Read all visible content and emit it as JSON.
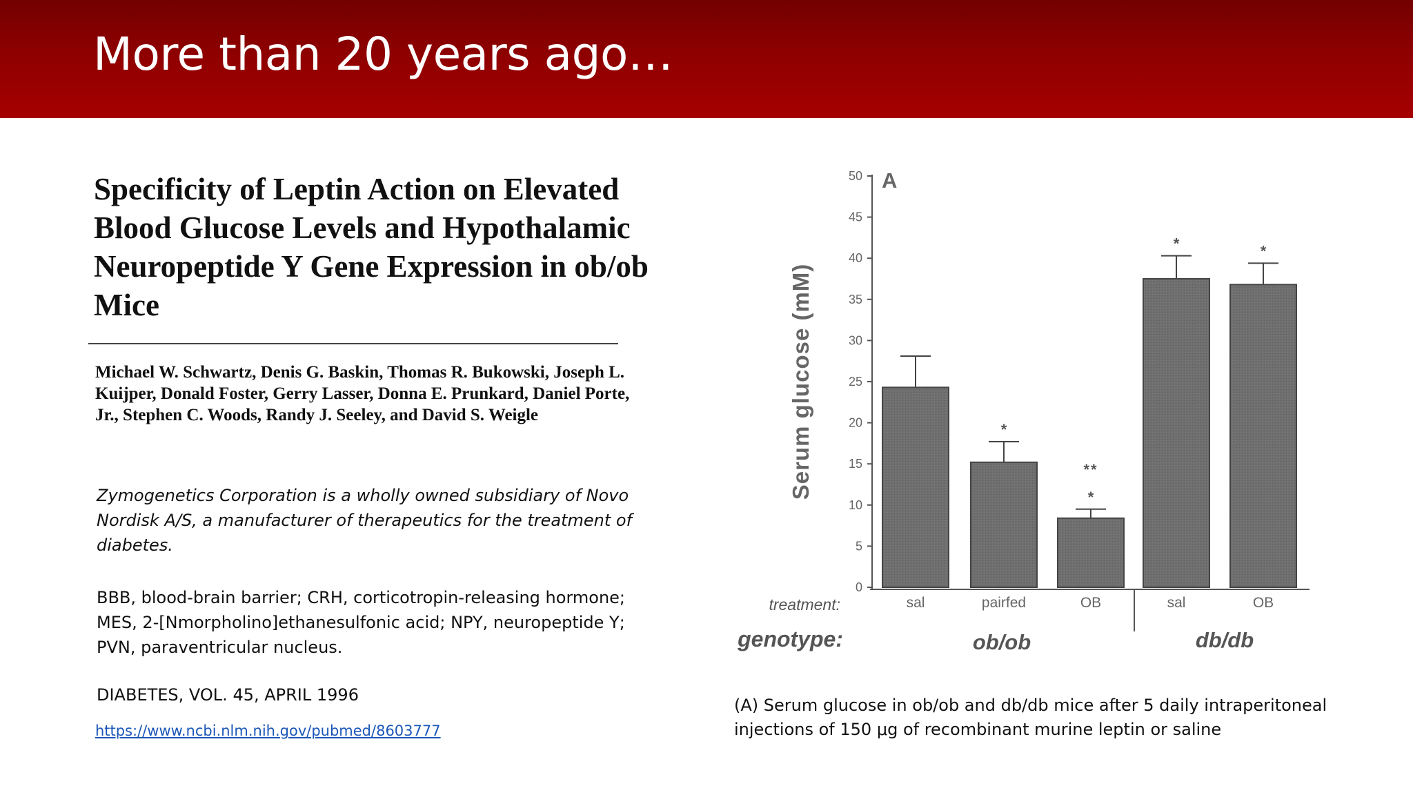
{
  "slide": {
    "title": "More than 20 years ago…"
  },
  "paper": {
    "title": "Specificity of Leptin Action on Elevated Blood Glucose Levels and Hypothalamic Neuropeptide Y Gene Expression in ob/ob Mice",
    "authors": "Michael W. Schwartz, Denis G. Baskin, Thomas R. Bukowski, Joseph L. Kuijper, Donald Foster, Gerry Lasser, Donna E. Prunkard, Daniel Porte, Jr., Stephen C. Woods, Randy J. Seeley, and David S. Weigle",
    "disclosure": "Zymogenetics Corporation is a wholly owned subsidiary of Novo Nordisk A/S, a manufacturer of therapeutics for the treatment of diabetes.",
    "abbreviations": "BBB, blood-brain barrier; CRH, corticotropin-releasing hormone; MES, 2-[Nmorpholino]ethanesulfonic acid; NPY, neuropeptide Y; PVN, paraventricular nucleus.",
    "journal": "DIABETES, VOL. 45, APRIL 1996",
    "link": "https://www.ncbi.nlm.nih.gov/pubmed/8603777"
  },
  "chart_data": {
    "type": "bar",
    "panel_label": "A",
    "ylabel": "Serum glucose (mM)",
    "ylim": [
      0,
      50
    ],
    "yticks": [
      "0",
      "5",
      "10",
      "15",
      "20",
      "25",
      "30",
      "35",
      "40",
      "45",
      "50"
    ],
    "categories": [
      "sal",
      "pairfed",
      "OB",
      "sal",
      "OB"
    ],
    "values": [
      24.3,
      15.2,
      8.4,
      37.5,
      36.8
    ],
    "errors": [
      3.8,
      2.5,
      1.1,
      2.8,
      2.6
    ],
    "significance": [
      "",
      "*",
      "*",
      "*",
      "*"
    ],
    "extra_significance": [
      "",
      "",
      "**",
      "",
      ""
    ],
    "treatment_label": "treatment:",
    "genotype_label": "genotype:",
    "groups": [
      {
        "name": "ob/ob",
        "categories": [
          "sal",
          "pairfed",
          "OB"
        ]
      },
      {
        "name": "db/db",
        "categories": [
          "sal",
          "OB"
        ]
      }
    ],
    "bar_color": "#6d6d6d"
  },
  "caption": "(A) Serum glucose in ob/ob and db/db mice after 5 daily intraperitoneal injections of 150 μg of recombinant murine leptin or saline"
}
